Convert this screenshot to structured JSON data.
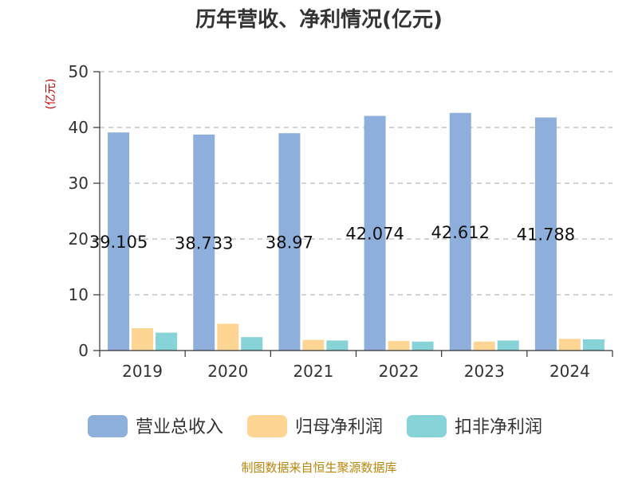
{
  "chart_data": {
    "type": "bar",
    "title": "历年营收、净利情况(亿元)",
    "ylabel": "(亿元)",
    "categories": [
      "2019",
      "2020",
      "2021",
      "2022",
      "2023",
      "2024"
    ],
    "series": [
      {
        "name": "营业总收入",
        "color": "#8eaedb",
        "values": [
          39.105,
          38.733,
          38.97,
          42.074,
          42.612,
          41.788
        ]
      },
      {
        "name": "归母净利润",
        "color": "#fed593",
        "values": [
          4.0,
          4.8,
          1.9,
          1.7,
          1.6,
          2.1
        ]
      },
      {
        "name": "扣非净利润",
        "color": "#86d3d8",
        "values": [
          3.2,
          2.4,
          1.8,
          1.6,
          1.8,
          2.0
        ]
      }
    ],
    "data_labels": [
      "39.105",
      "38.733",
      "38.97",
      "42.074",
      "42.612",
      "41.788"
    ],
    "ylim": [
      0,
      50
    ],
    "yticks": [
      "0",
      "10",
      "20",
      "30",
      "40",
      "50"
    ],
    "grid": true,
    "legend_position": "bottom"
  },
  "source": "制图数据来自恒生聚源数据库"
}
